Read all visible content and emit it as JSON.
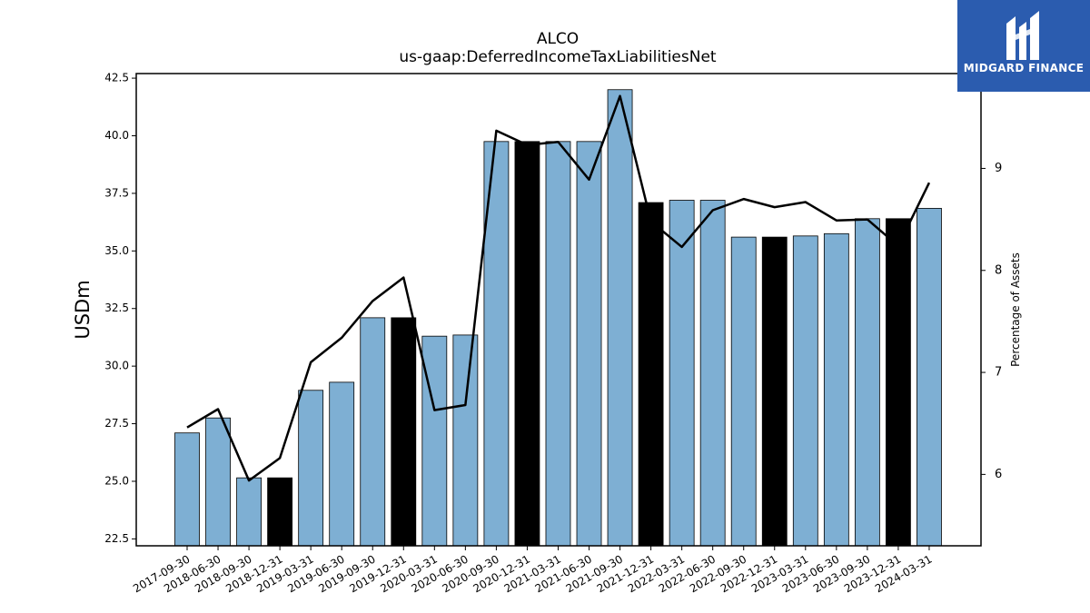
{
  "chart_data": {
    "type": "bar",
    "title": "ALCO",
    "subtitle": "us-gaap:DeferredIncomeTaxLiabilitiesNet",
    "ylabel": "USDm",
    "y2label": "Percentage of Assets",
    "ylim": [
      22.2,
      42.7
    ],
    "y2lim": [
      5.3,
      9.93
    ],
    "yticks": [
      "22.5",
      "25.0",
      "27.5",
      "30.0",
      "32.5",
      "35.0",
      "37.5",
      "40.0",
      "42.5"
    ],
    "y2ticks": [
      "6",
      "7",
      "8",
      "9"
    ],
    "categories": [
      "2017-09-30",
      "2018-06-30",
      "2018-09-30",
      "2018-12-31",
      "2019-03-31",
      "2019-06-30",
      "2019-09-30",
      "2019-12-31",
      "2020-03-31",
      "2020-06-30",
      "2020-09-30",
      "2020-12-31",
      "2021-03-31",
      "2021-06-30",
      "2021-09-30",
      "2021-12-31",
      "2022-03-31",
      "2022-06-30",
      "2022-09-30",
      "2022-12-31",
      "2023-03-31",
      "2023-06-30",
      "2023-09-30",
      "2023-12-31",
      "2024-03-31"
    ],
    "series": [
      {
        "type": "bar",
        "values": [
          27.1,
          27.75,
          25.15,
          25.15,
          28.95,
          29.3,
          32.1,
          32.1,
          31.3,
          31.35,
          39.75,
          39.75,
          39.75,
          39.75,
          42.0,
          37.1,
          37.2,
          37.2,
          35.6,
          35.6,
          35.65,
          35.75,
          36.4,
          36.4,
          36.85
        ],
        "highlight": [
          false,
          false,
          false,
          true,
          false,
          false,
          false,
          true,
          false,
          false,
          false,
          true,
          false,
          false,
          false,
          true,
          false,
          false,
          false,
          true,
          false,
          false,
          false,
          true,
          false
        ]
      },
      {
        "type": "line",
        "axis": "right",
        "values": [
          6.46,
          6.64,
          5.94,
          6.16,
          7.1,
          7.34,
          7.7,
          7.93,
          6.63,
          6.68,
          9.37,
          9.23,
          9.26,
          8.89,
          9.71,
          8.48,
          8.23,
          8.59,
          8.7,
          8.62,
          8.67,
          8.49,
          8.5,
          8.24,
          8.86
        ]
      }
    ],
    "colors": {
      "bar": "#7eafd3",
      "highlight": "#000000",
      "line": "#000000",
      "logo": "#2b5caf"
    },
    "grid": false
  },
  "logo": {
    "text": "MIDGARD FINANCE",
    "icon": "midgard-logo-icon"
  }
}
